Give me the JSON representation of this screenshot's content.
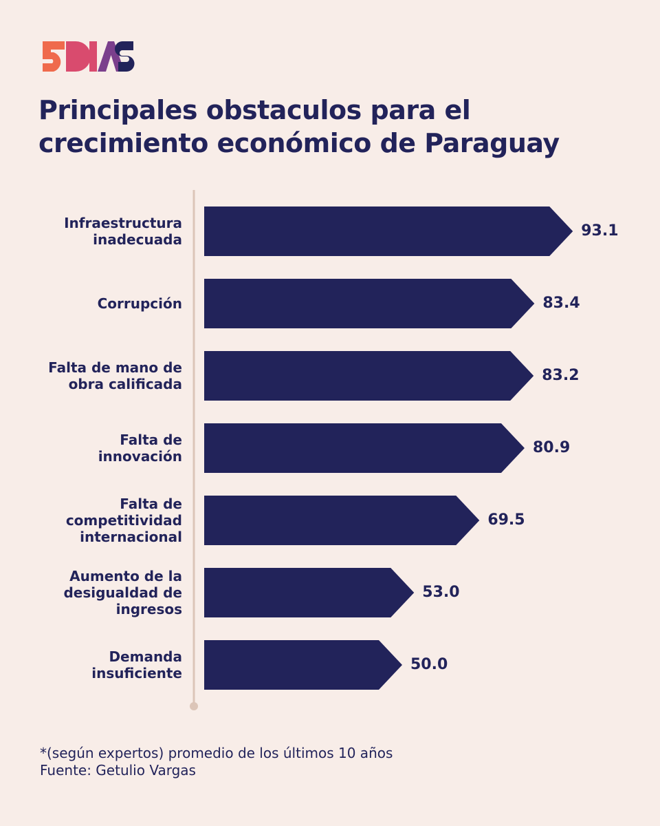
{
  "brand": {
    "logo_text": "5DIAS"
  },
  "header": {
    "title_line1": "Principales obstaculos para el",
    "title_line2": "crecimiento económico de Paraguay"
  },
  "colors": {
    "background": "#f8ede8",
    "bar": "#22235a",
    "text": "#22235a",
    "axis": "#dcc5b8",
    "logo": [
      "#ef6a4c",
      "#d94b6e",
      "#7b3f8c",
      "#22235a"
    ]
  },
  "chart_data": {
    "type": "bar",
    "orientation": "horizontal",
    "categories": [
      "Infraestructura\ninadecuada",
      "Corrupción",
      "Falta de mano de\nobra calificada",
      "Falta de\ninnovación",
      "Falta de\ncompetitividad\ninternacional",
      "Aumento de la\ndesigualdad de\ningresos",
      "Demanda\ninsuficiente"
    ],
    "values": [
      93.1,
      83.4,
      83.2,
      80.9,
      69.5,
      53.0,
      50.0
    ],
    "value_labels": [
      "93.1",
      "83.4",
      "83.2",
      "80.9",
      "69.5",
      "53.0",
      "50.0"
    ],
    "title": "Principales obstaculos para el crecimiento económico de Paraguay",
    "xlabel": "",
    "ylabel": "",
    "xlim": [
      0,
      100
    ],
    "grid": false,
    "legend": "none"
  },
  "footer": {
    "note": "*(según expertos) promedio de los últimos 10 años",
    "source": "Fuente: Getulio Vargas"
  }
}
